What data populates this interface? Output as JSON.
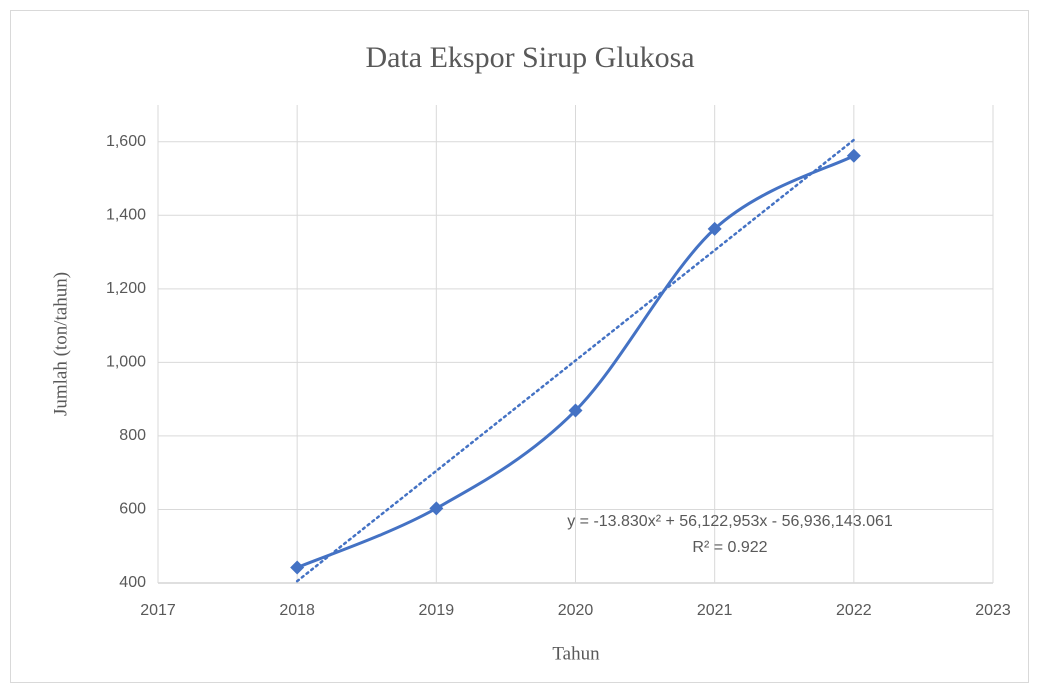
{
  "chart_data": {
    "type": "scatter",
    "title": "Data Ekspor Sirup Glukosa",
    "xlabel": "Tahun",
    "ylabel": "Jumlah (ton/tahun)",
    "x": [
      2018,
      2019,
      2020,
      2021,
      2022
    ],
    "series": [
      {
        "color": "#4472c4",
        "values": [
          442,
          603,
          869,
          1363,
          1562
        ]
      }
    ],
    "trendline": {
      "x": [
        2018,
        2022
      ],
      "values": [
        405,
        1605
      ],
      "color": "#4472c4"
    },
    "annotations": [
      "y = -13.830x² + 56,122,953x - 56,936,143.061",
      "R² = 0.922"
    ],
    "xlim": [
      2017,
      2023
    ],
    "xticks": [
      2017,
      2018,
      2019,
      2020,
      2021,
      2022,
      2023
    ],
    "ylim": [
      400,
      1700
    ],
    "yticks": [
      400,
      600,
      800,
      {
        "value": 1000,
        "label": "1,000"
      },
      {
        "value": 1200,
        "label": "1,200"
      },
      {
        "value": 1400,
        "label": "1,400"
      },
      {
        "value": 1600,
        "label": "1,600"
      }
    ],
    "grid": true
  }
}
